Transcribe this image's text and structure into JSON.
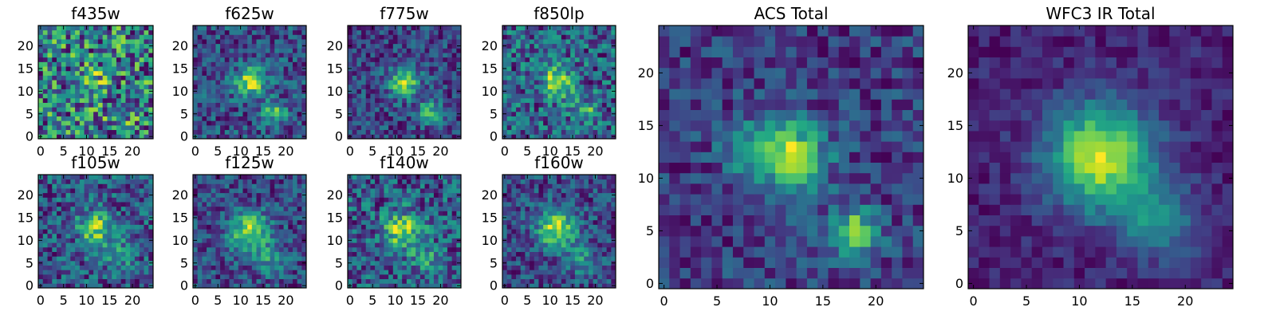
{
  "chart_data": {
    "type": "heatmap",
    "colormap": "viridis",
    "grid_size": 25,
    "panels": [
      {
        "id": "f435w",
        "title": "f435w",
        "grid": "small",
        "noise": 0.62,
        "base": 0.58,
        "blobs": [
          {
            "cx": 12,
            "cy": 12,
            "amp": 0.35,
            "sigma": 2.0
          },
          {
            "cx": 17,
            "cy": 5,
            "amp": 0.3,
            "sigma": 1.6
          }
        ],
        "xticks": [
          0,
          5,
          10,
          15,
          20
        ],
        "yticks": [
          0,
          5,
          10,
          15,
          20
        ],
        "xlim": [
          0,
          24
        ],
        "ylim": [
          0,
          24
        ]
      },
      {
        "id": "f625w",
        "title": "f625w",
        "grid": "small",
        "noise": 0.28,
        "base": 0.2,
        "blobs": [
          {
            "cx": 12,
            "cy": 12,
            "amp": 0.75,
            "sigma": 2.3
          },
          {
            "cx": 17.5,
            "cy": 5.5,
            "amp": 0.55,
            "sigma": 1.8
          }
        ],
        "xticks": [
          0,
          5,
          10,
          15,
          20
        ],
        "yticks": [
          0,
          5,
          10,
          15,
          20
        ],
        "xlim": [
          0,
          24
        ],
        "ylim": [
          0,
          24
        ]
      },
      {
        "id": "f775w",
        "title": "f775w",
        "grid": "small",
        "noise": 0.25,
        "base": 0.22,
        "blobs": [
          {
            "cx": 12,
            "cy": 12,
            "amp": 0.75,
            "sigma": 2.3
          },
          {
            "cx": 17.5,
            "cy": 5.5,
            "amp": 0.55,
            "sigma": 1.8
          }
        ],
        "xticks": [
          0,
          5,
          10,
          15,
          20
        ],
        "yticks": [
          0,
          5,
          10,
          15,
          20
        ],
        "xlim": [
          0,
          24
        ],
        "ylim": [
          0,
          24
        ]
      },
      {
        "id": "f850lp",
        "title": "f850lp",
        "grid": "small",
        "noise": 0.32,
        "base": 0.35,
        "blobs": [
          {
            "cx": 11.5,
            "cy": 12,
            "amp": 0.6,
            "sigma": 2.4
          },
          {
            "cx": 18,
            "cy": 5.5,
            "amp": 0.4,
            "sigma": 1.8
          }
        ],
        "xticks": [
          0,
          5,
          10,
          15,
          20
        ],
        "yticks": [
          0,
          5,
          10,
          15,
          20
        ],
        "xlim": [
          0,
          24
        ],
        "ylim": [
          0,
          24
        ]
      },
      {
        "id": "f105w",
        "title": "f105w",
        "grid": "small",
        "noise": 0.3,
        "base": 0.32,
        "blobs": [
          {
            "cx": 12,
            "cy": 12.5,
            "amp": 0.62,
            "sigma": 2.6
          },
          {
            "cx": 17.5,
            "cy": 7,
            "amp": 0.3,
            "sigma": 2.4
          }
        ],
        "xticks": [
          0,
          5,
          10,
          15,
          20
        ],
        "yticks": [
          0,
          5,
          10,
          15,
          20
        ],
        "xlim": [
          0,
          24
        ],
        "ylim": [
          0,
          24
        ]
      },
      {
        "id": "f125w",
        "title": "f125w",
        "grid": "small",
        "noise": 0.26,
        "base": 0.25,
        "blobs": [
          {
            "cx": 12,
            "cy": 12,
            "amp": 0.75,
            "sigma": 3.0
          },
          {
            "cx": 17,
            "cy": 6,
            "amp": 0.35,
            "sigma": 2.4
          }
        ],
        "xticks": [
          0,
          5,
          10,
          15,
          20
        ],
        "yticks": [
          0,
          5,
          10,
          15,
          20
        ],
        "xlim": [
          0,
          24
        ],
        "ylim": [
          0,
          24
        ]
      },
      {
        "id": "f140w",
        "title": "f140w",
        "grid": "small",
        "noise": 0.3,
        "base": 0.35,
        "blobs": [
          {
            "cx": 11.5,
            "cy": 12,
            "amp": 0.6,
            "sigma": 3.0
          },
          {
            "cx": 17,
            "cy": 6,
            "amp": 0.3,
            "sigma": 2.4
          }
        ],
        "xticks": [
          0,
          5,
          10,
          15,
          20
        ],
        "yticks": [
          0,
          5,
          10,
          15,
          20
        ],
        "xlim": [
          0,
          24
        ],
        "ylim": [
          0,
          24
        ]
      },
      {
        "id": "f160w",
        "title": "f160w",
        "grid": "small",
        "noise": 0.26,
        "base": 0.25,
        "blobs": [
          {
            "cx": 11.5,
            "cy": 12.5,
            "amp": 0.78,
            "sigma": 3.0
          },
          {
            "cx": 17,
            "cy": 6,
            "amp": 0.35,
            "sigma": 2.4
          }
        ],
        "xticks": [
          0,
          5,
          10,
          15,
          20
        ],
        "yticks": [
          0,
          5,
          10,
          15,
          20
        ],
        "xlim": [
          0,
          24
        ],
        "ylim": [
          0,
          24
        ]
      },
      {
        "id": "acs-total",
        "title": "ACS Total",
        "grid": "large",
        "noise": 0.22,
        "base": 0.2,
        "blobs": [
          {
            "cx": 12,
            "cy": 12,
            "amp": 0.85,
            "sigma": 2.3
          },
          {
            "cx": 18,
            "cy": 5,
            "amp": 0.72,
            "sigma": 1.6
          },
          {
            "cx": 8,
            "cy": 13,
            "amp": 0.3,
            "sigma": 2.0
          }
        ],
        "xticks": [
          0,
          5,
          10,
          15,
          20
        ],
        "yticks": [
          0,
          5,
          10,
          15,
          20
        ],
        "xlim": [
          0,
          24
        ],
        "ylim": [
          0,
          24
        ]
      },
      {
        "id": "wfc3-ir-total",
        "title": "WFC3 IR Total",
        "grid": "large",
        "noise": 0.1,
        "base": 0.22,
        "blobs": [
          {
            "cx": 12,
            "cy": 12,
            "amp": 0.8,
            "sigma": 3.5
          },
          {
            "cx": 17.5,
            "cy": 6,
            "amp": 0.35,
            "sigma": 2.5
          }
        ],
        "xticks": [
          0,
          5,
          10,
          15,
          20
        ],
        "yticks": [
          0,
          5,
          10,
          15,
          20
        ],
        "xlim": [
          0,
          24
        ],
        "ylim": [
          0,
          24
        ]
      }
    ]
  }
}
